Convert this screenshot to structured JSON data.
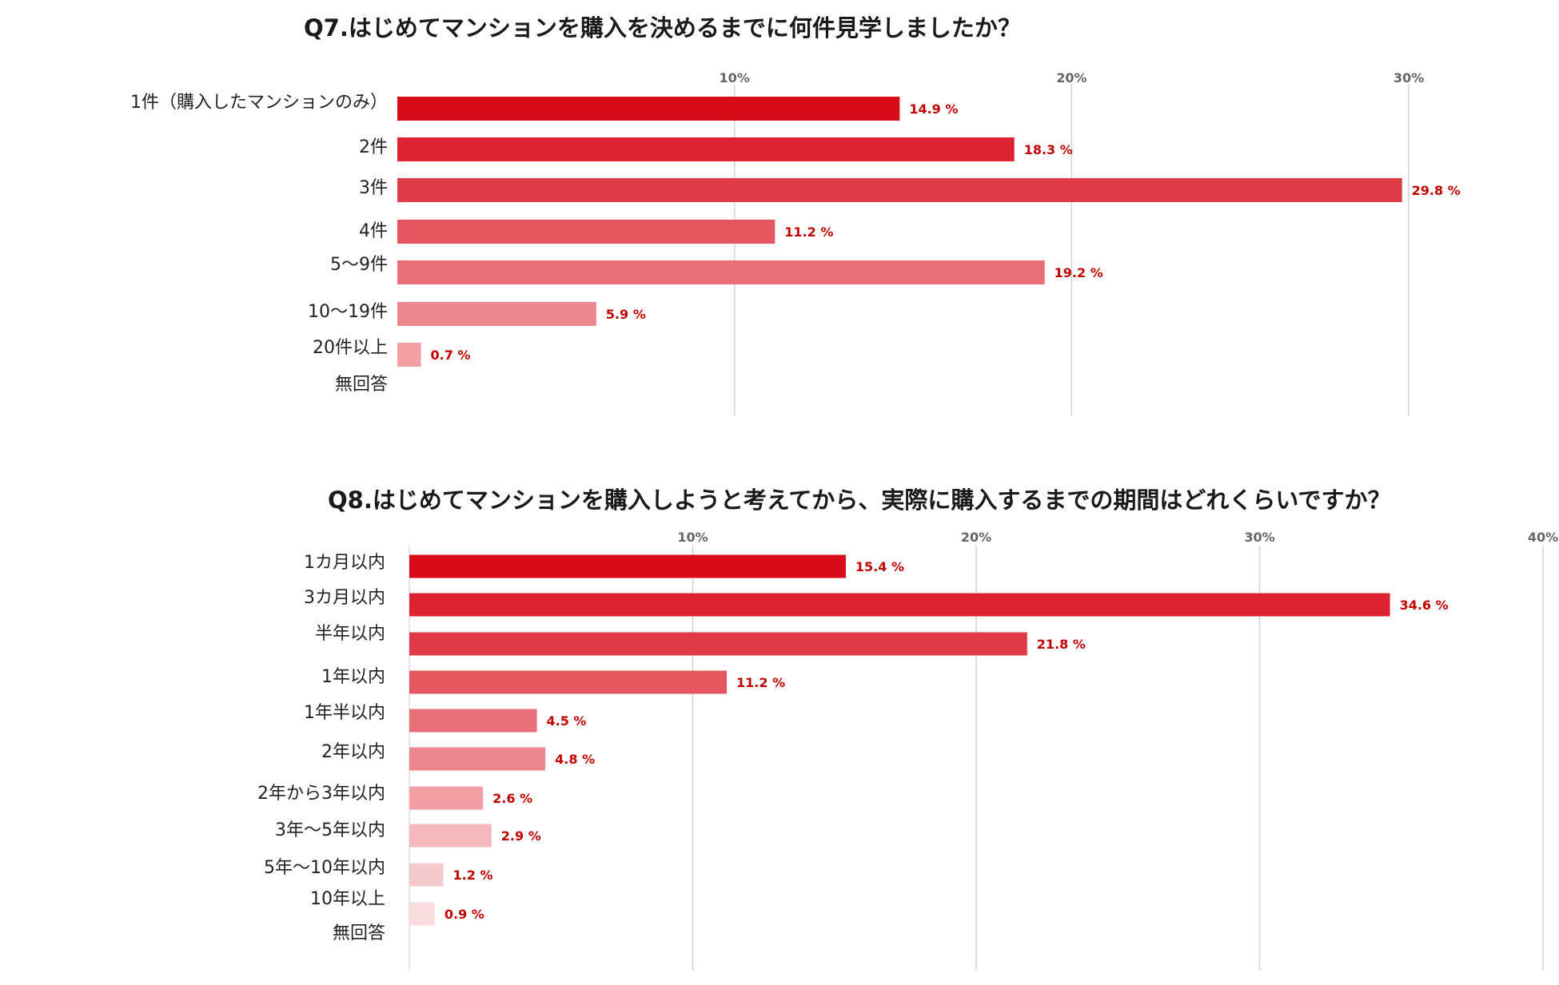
{
  "chart_data": [
    {
      "type": "bar",
      "orientation": "horizontal",
      "title": "Q7.はじめてマンションを購入を決めるまでに何件見学しましたか？",
      "categories": [
        "1件（購入したマンションのみ）",
        "2件",
        "3件",
        "4件",
        "5～9件",
        "10～19件",
        "20件以上",
        "無回答"
      ],
      "values": [
        14.9,
        18.3,
        29.8,
        11.2,
        19.2,
        5.9,
        0.7,
        null
      ],
      "value_labels": [
        "14.9 %",
        "18.3 %",
        "29.8 %",
        "11.2 %",
        "19.2 %",
        "5.9 %",
        "0.7 %",
        ""
      ],
      "ticks": [
        "10%",
        "20%",
        "30%"
      ],
      "tick_values": [
        10,
        20,
        30
      ],
      "xlim": [
        0,
        30
      ],
      "grid": true,
      "bar_colors": [
        "#d80c18",
        "#dc2332",
        "#e03c48",
        "#e4565f",
        "#e86e77",
        "#ed878e",
        "#f19fa5",
        "#f5b8bc"
      ],
      "label_color": "#c00000"
    },
    {
      "type": "bar",
      "orientation": "horizontal",
      "title": "Q8.はじめてマンションを購入しようと考えてから、実際に購入するまでの期間はどれくらいですか？",
      "categories": [
        "1カ月以内",
        "3カ月以内",
        "半年以内",
        "1年以内",
        "1年半以内",
        "2年以内",
        "2年から3年以内",
        "3年～5年以内",
        "5年～10年以内",
        "10年以上",
        "無回答"
      ],
      "values": [
        15.4,
        34.6,
        21.8,
        11.2,
        4.5,
        4.8,
        2.6,
        2.9,
        1.2,
        0.9,
        null
      ],
      "value_labels": [
        "15.4 %",
        "34.6 %",
        "21.8 %",
        "11.2 %",
        "4.5 %",
        "4.8 %",
        "2.6 %",
        "2.9 %",
        "1.2 %",
        "0.9 %",
        ""
      ],
      "ticks": [
        "10%",
        "20%",
        "30%",
        "40%"
      ],
      "tick_values": [
        10,
        20,
        30,
        40
      ],
      "xlim": [
        0,
        40
      ],
      "grid": true,
      "bar_colors": [
        "#d80c18",
        "#dc2332",
        "#e03c48",
        "#e4565f",
        "#e86e77",
        "#ed878e",
        "#f19fa5",
        "#f5b8bc",
        "#f6cacd",
        "#f8dcdf",
        "#fae7e9"
      ],
      "label_color": "#c00000"
    }
  ]
}
